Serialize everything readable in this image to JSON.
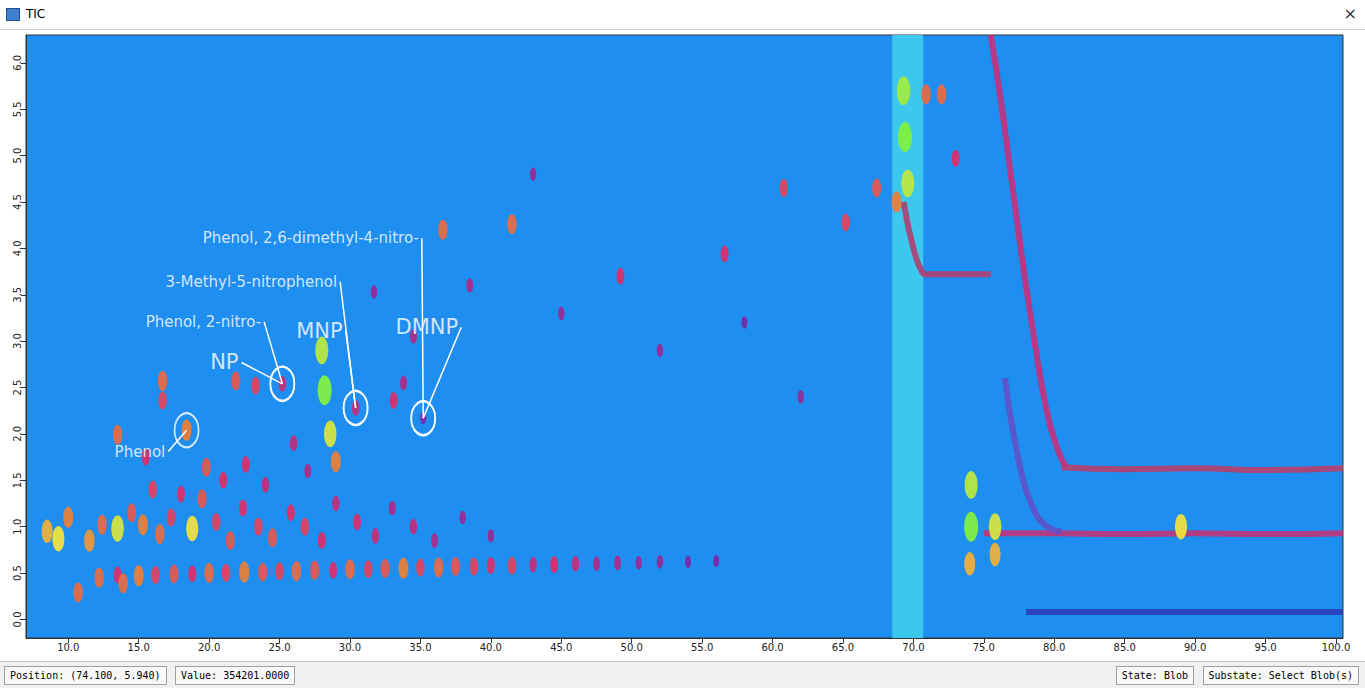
{
  "window": {
    "title": "TIC",
    "close": "×",
    "status": [
      "Position: (74.100, 5.940)",
      "Value: 354201.0000"
    ],
    "state": [
      "State: Blob",
      "Substate: Select Blob(s)"
    ]
  },
  "chart_data": {
    "type": "scatter",
    "xlim": [
      7,
      100.5
    ],
    "ylim": [
      -0.2,
      6.3
    ],
    "xticks": [
      {
        "value": 10,
        "label": "10.0"
      },
      {
        "value": 15,
        "label": "15.0"
      },
      {
        "value": 20,
        "label": "20.0"
      },
      {
        "value": 25,
        "label": "25.0"
      },
      {
        "value": 30,
        "label": "30.0"
      },
      {
        "value": 35,
        "label": "35.0"
      },
      {
        "value": 40,
        "label": "40.0"
      },
      {
        "value": 45,
        "label": "45.0"
      },
      {
        "value": 50,
        "label": "50.0"
      },
      {
        "value": 55,
        "label": "55.0"
      },
      {
        "value": 60,
        "label": "60.0"
      },
      {
        "value": 65,
        "label": "65.0"
      },
      {
        "value": 70,
        "label": "70.0"
      },
      {
        "value": 75,
        "label": "75.0"
      },
      {
        "value": 80,
        "label": "80.0"
      },
      {
        "value": 85,
        "label": "85.0"
      },
      {
        "value": 90,
        "label": "90.0"
      },
      {
        "value": 95,
        "label": "95.0"
      },
      {
        "value": 100,
        "label": "100.0"
      }
    ],
    "yticks": [
      {
        "value": 0,
        "label": "0.0"
      },
      0.5,
      {
        "value": 1,
        "label": "1.0"
      },
      1.5,
      {
        "value": 2,
        "label": "2.0"
      },
      2.5,
      {
        "value": 3,
        "label": "3.0"
      },
      3.5,
      {
        "value": 4,
        "label": "4.0"
      },
      4.5,
      {
        "value": 5,
        "label": "5.0"
      },
      5.5,
      {
        "value": 6,
        "label": "6.0"
      }
    ],
    "grid": false,
    "zlim": [
      0,
      100
    ],
    "shaded_x": [
      68.5,
      70.7
    ],
    "blobs": [
      [
        12.2,
        0.45,
        55
      ],
      [
        13.5,
        0.48,
        40
      ],
      [
        15.0,
        0.47,
        60
      ],
      [
        16.2,
        0.48,
        45
      ],
      [
        17.5,
        0.49,
        50
      ],
      [
        18.8,
        0.49,
        40
      ],
      [
        20.0,
        0.5,
        55
      ],
      [
        21.2,
        0.5,
        45
      ],
      [
        22.5,
        0.51,
        60
      ],
      [
        23.8,
        0.51,
        50
      ],
      [
        25.0,
        0.52,
        45
      ],
      [
        26.2,
        0.52,
        55
      ],
      [
        27.5,
        0.53,
        50
      ],
      [
        28.8,
        0.53,
        40
      ],
      [
        30.0,
        0.54,
        55
      ],
      [
        31.3,
        0.54,
        45
      ],
      [
        32.5,
        0.55,
        50
      ],
      [
        33.8,
        0.55,
        60
      ],
      [
        35.0,
        0.56,
        45
      ],
      [
        36.3,
        0.56,
        55
      ],
      [
        37.5,
        0.57,
        50
      ],
      [
        38.8,
        0.57,
        45
      ],
      [
        40.0,
        0.58,
        40
      ],
      [
        41.5,
        0.58,
        45
      ],
      [
        43.0,
        0.59,
        35
      ],
      [
        44.5,
        0.59,
        40
      ],
      [
        46.0,
        0.6,
        35
      ],
      [
        47.5,
        0.6,
        30
      ],
      [
        49.0,
        0.61,
        30
      ],
      [
        50.5,
        0.61,
        25
      ],
      [
        52.0,
        0.62,
        25
      ],
      [
        54.0,
        0.62,
        20
      ],
      [
        56.0,
        0.63,
        20
      ],
      [
        8.5,
        0.95,
        70
      ],
      [
        9.3,
        0.87,
        80
      ],
      [
        10.0,
        1.1,
        60
      ],
      [
        10.7,
        0.29,
        55
      ],
      [
        11.5,
        0.85,
        65
      ],
      [
        12.4,
        1.02,
        55
      ],
      [
        13.5,
        0.98,
        85
      ],
      [
        14.5,
        1.15,
        50
      ],
      [
        15.3,
        1.02,
        60
      ],
      [
        16.5,
        0.92,
        55
      ],
      [
        17.3,
        1.1,
        45
      ],
      [
        18.8,
        0.98,
        80
      ],
      [
        19.5,
        1.3,
        50
      ],
      [
        20.5,
        1.05,
        45
      ],
      [
        21.5,
        0.85,
        50
      ],
      [
        22.4,
        1.2,
        40
      ],
      [
        23.5,
        1.0,
        45
      ],
      [
        24.5,
        0.88,
        50
      ],
      [
        25.8,
        1.15,
        40
      ],
      [
        26.8,
        1.0,
        45
      ],
      [
        28.0,
        0.85,
        40
      ],
      [
        29.0,
        1.25,
        35
      ],
      [
        30.5,
        1.05,
        40
      ],
      [
        31.8,
        0.9,
        35
      ],
      [
        33.0,
        1.2,
        30
      ],
      [
        34.5,
        1.0,
        35
      ],
      [
        36.0,
        0.85,
        30
      ],
      [
        38.0,
        1.1,
        25
      ],
      [
        40.0,
        0.9,
        25
      ],
      [
        13.9,
        0.39,
        55
      ],
      [
        16.0,
        1.4,
        45
      ],
      [
        18.0,
        1.35,
        40
      ],
      [
        21.0,
        1.5,
        40
      ],
      [
        24.0,
        1.45,
        35
      ],
      [
        27.0,
        1.6,
        30
      ],
      [
        13.5,
        1.99,
        55
      ],
      [
        15.5,
        1.75,
        40
      ],
      [
        16.7,
        2.57,
        55
      ],
      [
        16.7,
        2.36,
        45
      ],
      [
        19.8,
        1.64,
        50
      ],
      [
        21.9,
        2.57,
        50
      ],
      [
        22.6,
        1.67,
        40
      ],
      [
        23.3,
        2.52,
        45
      ],
      [
        26.0,
        1.9,
        35
      ],
      [
        33.1,
        2.36,
        40
      ],
      [
        33.8,
        2.55,
        30
      ],
      [
        34.5,
        3.05,
        30
      ],
      [
        31.7,
        3.53,
        25
      ],
      [
        18.4,
        2.04,
        60
      ],
      [
        25.2,
        2.54,
        35
      ],
      [
        30.4,
        2.28,
        35
      ],
      [
        35.2,
        2.17,
        20
      ],
      [
        28.2,
        2.47,
        100
      ],
      [
        28.0,
        2.9,
        90
      ],
      [
        28.6,
        2.0,
        85
      ],
      [
        29.0,
        1.7,
        60
      ],
      [
        36.6,
        4.2,
        55
      ],
      [
        41.5,
        4.26,
        55
      ],
      [
        49.2,
        3.7,
        40
      ],
      [
        56.6,
        3.94,
        40
      ],
      [
        60.8,
        4.65,
        45
      ],
      [
        65.2,
        4.28,
        45
      ],
      [
        67.4,
        4.65,
        50
      ],
      [
        70.9,
        5.66,
        55
      ],
      [
        72.0,
        5.66,
        55
      ],
      [
        73.0,
        4.97,
        40
      ],
      [
        45.0,
        3.3,
        25
      ],
      [
        52.0,
        2.9,
        25
      ],
      [
        38.5,
        3.6,
        30
      ],
      [
        43.0,
        4.8,
        25
      ],
      [
        62.0,
        2.4,
        25
      ],
      [
        58.0,
        3.2,
        20
      ],
      [
        69.4,
        5.2,
        100
      ],
      [
        69.3,
        5.7,
        95
      ],
      [
        69.6,
        4.7,
        90
      ],
      [
        68.8,
        4.5,
        60
      ],
      [
        74.1,
        1.45,
        90
      ],
      [
        74.1,
        1.0,
        100
      ],
      [
        74.0,
        0.6,
        70
      ],
      [
        75.8,
        1.0,
        85
      ],
      [
        75.8,
        0.7,
        70
      ],
      [
        89.0,
        1.0,
        80
      ]
    ],
    "bleed_lines": [
      {
        "color": "#b8406a",
        "x": [
          80.5,
          85,
          90,
          95,
          100.5
        ],
        "y": [
          1.64,
          1.62,
          1.63,
          1.61,
          1.63
        ]
      },
      {
        "color": "#c03478",
        "x": [
          75,
          80,
          85,
          90,
          95,
          100.5
        ],
        "y": [
          0.93,
          0.93,
          0.92,
          0.93,
          0.92,
          0.93
        ]
      },
      {
        "color": "#c8307a",
        "x": [
          75.5,
          76.2,
          77,
          77.8,
          78.6,
          79.4,
          80.2,
          80.8
        ],
        "y": [
          6.3,
          5.6,
          4.7,
          3.8,
          3.0,
          2.3,
          1.85,
          1.65
        ]
      },
      {
        "color": "#b04070",
        "x": [
          69.3,
          70,
          70.6,
          71,
          73,
          75.5
        ],
        "y": [
          4.5,
          4.0,
          3.75,
          3.72,
          3.72,
          3.72
        ]
      },
      {
        "color": "#2a3ab8",
        "x": [
          78,
          100.5
        ],
        "y": [
          0.08,
          0.08
        ]
      },
      {
        "color": "#6050c8",
        "x": [
          76.5,
          77.5,
          78.5,
          79.5,
          80.5
        ],
        "y": [
          2.6,
          1.7,
          1.2,
          1.0,
          0.95
        ]
      }
    ],
    "annotations": [
      {
        "text": "Phenol",
        "x": 18.4,
        "y": 2.04,
        "text_x": 17.1,
        "text_y": 1.81
      },
      {
        "text": "NP",
        "x": 25.2,
        "y": 2.54,
        "text_x": 22.3,
        "text_y": 2.77
      },
      {
        "text": "Phenol, 2-nitro-",
        "x": 25.2,
        "y": 2.54,
        "text_x": 23.9,
        "text_y": 3.21
      },
      {
        "text": "MNP",
        "x": 30.4,
        "y": 2.28,
        "text_x": 29.7,
        "text_y": 3.11
      },
      {
        "text": "3-Methyl-5-nitrophenol",
        "x": 30.4,
        "y": 2.28,
        "text_x": 29.3,
        "text_y": 3.64
      },
      {
        "text": "DMNP",
        "x": 35.2,
        "y": 2.17,
        "text_x": 37.9,
        "text_y": 3.15
      },
      {
        "text": "Phenol, 2,6-dimethyl-4-nitro-",
        "x": 35.2,
        "y": 2.17,
        "text_x": 35.1,
        "text_y": 4.11
      }
    ]
  }
}
